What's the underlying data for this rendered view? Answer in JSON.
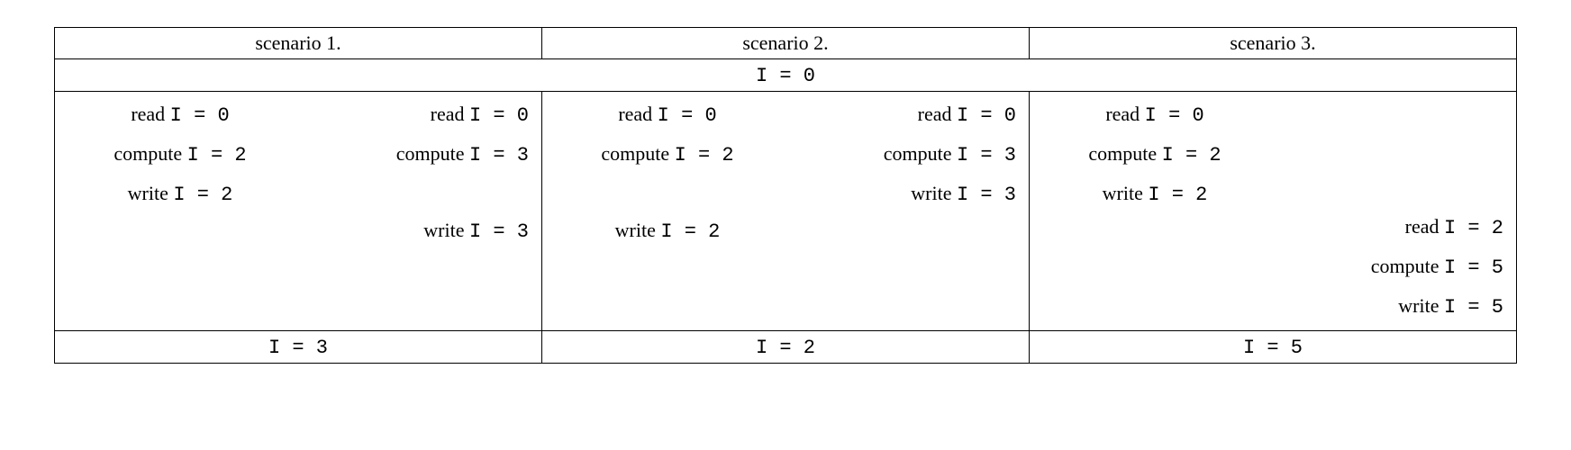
{
  "type": "table",
  "columns": 3,
  "background_color": "#ffffff",
  "border_color": "#000000",
  "text_color": "#000000",
  "body_fontsize": 22,
  "mono_font": "Courier New",
  "serif_font": "Georgia",
  "headers": {
    "s1": "scenario 1.",
    "s2": "scenario 2.",
    "s3": "scenario 3."
  },
  "init": "I = 0",
  "scenarios": {
    "s1": {
      "left": [
        "read I = 0",
        "compute I = 2",
        "write I = 2",
        " ",
        " ",
        " "
      ],
      "right": [
        "read I = 0",
        "compute I = 3",
        " ",
        "write I = 3",
        " ",
        " "
      ],
      "result": "I = 3"
    },
    "s2": {
      "left": [
        "read I = 0",
        "compute I = 2",
        " ",
        "write I = 2",
        " ",
        " "
      ],
      "right": [
        "read I = 0",
        "compute I = 3",
        "write I = 3",
        " ",
        " ",
        " "
      ],
      "result": "I = 2"
    },
    "s3": {
      "left": [
        "read I = 0",
        "compute I = 2",
        "write I = 2",
        " ",
        " ",
        " "
      ],
      "right": [
        " ",
        " ",
        " ",
        "read I = 2",
        "compute I = 5",
        "write I = 5"
      ],
      "result": "I = 5"
    }
  }
}
